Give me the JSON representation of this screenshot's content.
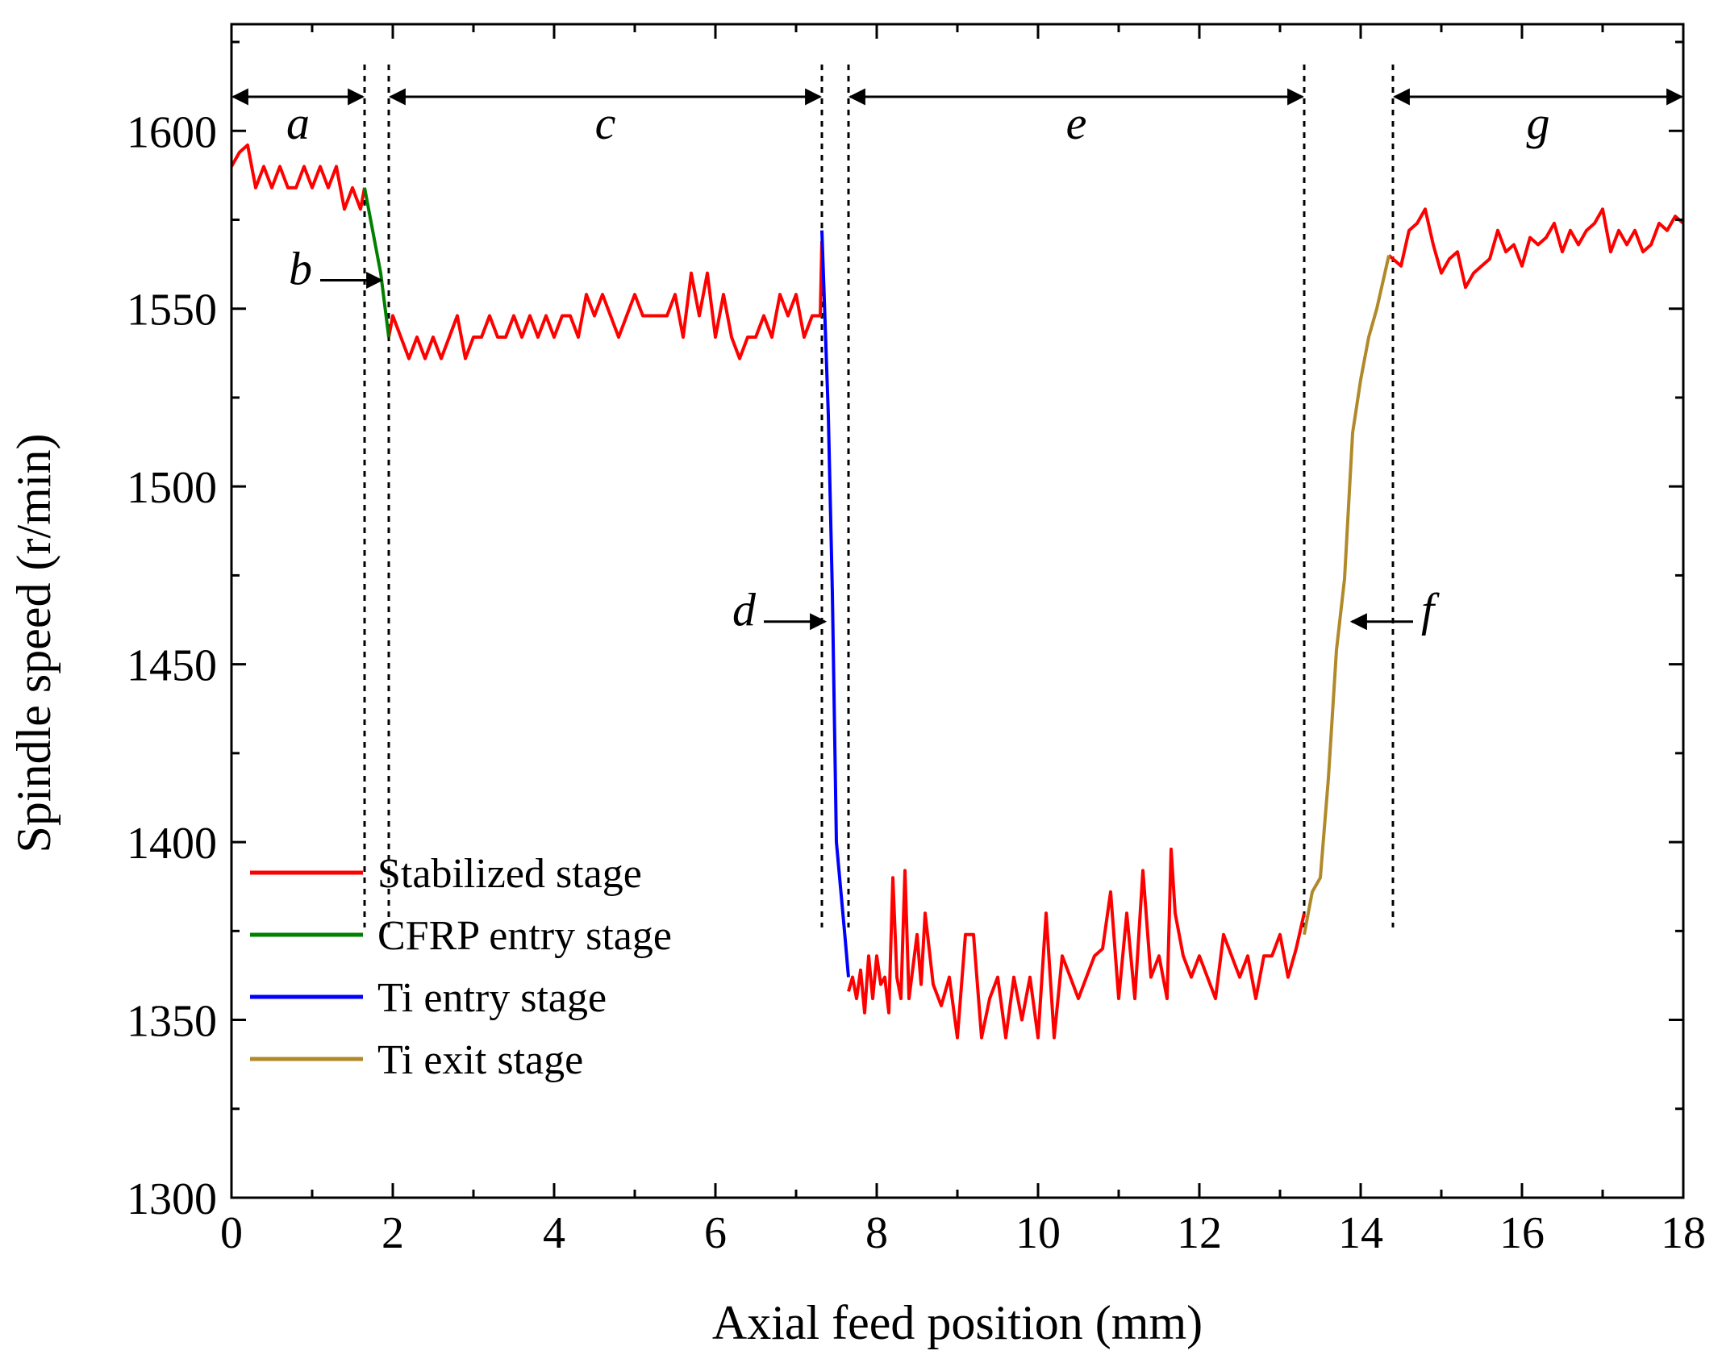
{
  "chart_data": {
    "type": "line",
    "title": "",
    "xlabel": "Axial feed position (mm)",
    "ylabel": "Spindle speed (r/min)",
    "xlim": [
      0,
      18
    ],
    "ylim": [
      1300,
      1630
    ],
    "xticks": [
      0,
      2,
      4,
      6,
      8,
      10,
      12,
      14,
      16,
      18
    ],
    "xtick_labels": [
      "0",
      "2",
      "4",
      "6",
      "8",
      "10",
      "12",
      "14",
      "16",
      "18"
    ],
    "yticks": [
      1300,
      1350,
      1400,
      1450,
      1500,
      1550,
      1600
    ],
    "ytick_labels": [
      "1300",
      "1350",
      "1400",
      "1450",
      "1500",
      "1550",
      "1600"
    ],
    "grid": false,
    "legend_position": "bottom-left",
    "series": [
      {
        "name": "Stabilized stage",
        "color": "#ff0000",
        "segments": [
          [
            [
              0,
              1590
            ],
            [
              0.1,
              1594
            ],
            [
              0.2,
              1596
            ],
            [
              0.3,
              1584
            ],
            [
              0.4,
              1590
            ],
            [
              0.5,
              1584
            ],
            [
              0.6,
              1590
            ],
            [
              0.7,
              1584
            ],
            [
              0.8,
              1584
            ],
            [
              0.9,
              1590
            ],
            [
              1.0,
              1584
            ],
            [
              1.1,
              1590
            ],
            [
              1.2,
              1584
            ],
            [
              1.3,
              1590
            ],
            [
              1.4,
              1578
            ],
            [
              1.5,
              1584
            ],
            [
              1.6,
              1578
            ],
            [
              1.65,
              1584
            ]
          ],
          [
            [
              1.95,
              1542
            ],
            [
              2.0,
              1548
            ],
            [
              2.1,
              1542
            ],
            [
              2.2,
              1536
            ],
            [
              2.3,
              1542
            ],
            [
              2.4,
              1536
            ],
            [
              2.5,
              1542
            ],
            [
              2.6,
              1536
            ],
            [
              2.7,
              1542
            ],
            [
              2.8,
              1548
            ],
            [
              2.9,
              1536
            ],
            [
              3.0,
              1542
            ],
            [
              3.1,
              1542
            ],
            [
              3.2,
              1548
            ],
            [
              3.3,
              1542
            ],
            [
              3.4,
              1542
            ],
            [
              3.5,
              1548
            ],
            [
              3.6,
              1542
            ],
            [
              3.7,
              1548
            ],
            [
              3.8,
              1542
            ],
            [
              3.9,
              1548
            ],
            [
              4.0,
              1542
            ],
            [
              4.1,
              1548
            ],
            [
              4.2,
              1548
            ],
            [
              4.3,
              1542
            ],
            [
              4.4,
              1554
            ],
            [
              4.5,
              1548
            ],
            [
              4.6,
              1554
            ],
            [
              4.7,
              1548
            ],
            [
              4.8,
              1542
            ],
            [
              4.9,
              1548
            ],
            [
              5.0,
              1554
            ],
            [
              5.1,
              1548
            ],
            [
              5.2,
              1548
            ],
            [
              5.3,
              1548
            ],
            [
              5.4,
              1548
            ],
            [
              5.5,
              1554
            ],
            [
              5.6,
              1542
            ],
            [
              5.7,
              1560
            ],
            [
              5.8,
              1548
            ],
            [
              5.9,
              1560
            ],
            [
              6.0,
              1542
            ],
            [
              6.1,
              1554
            ],
            [
              6.2,
              1542
            ],
            [
              6.3,
              1536
            ],
            [
              6.4,
              1542
            ],
            [
              6.5,
              1542
            ],
            [
              6.6,
              1548
            ],
            [
              6.7,
              1542
            ],
            [
              6.8,
              1554
            ],
            [
              6.9,
              1548
            ],
            [
              7.0,
              1554
            ],
            [
              7.1,
              1542
            ],
            [
              7.2,
              1548
            ],
            [
              7.3,
              1548
            ],
            [
              7.32,
              1569
            ]
          ],
          [
            [
              7.65,
              1358
            ],
            [
              7.7,
              1362
            ],
            [
              7.75,
              1356
            ],
            [
              7.8,
              1364
            ],
            [
              7.85,
              1352
            ],
            [
              7.9,
              1368
            ],
            [
              7.95,
              1356
            ],
            [
              8.0,
              1368
            ],
            [
              8.05,
              1360
            ],
            [
              8.1,
              1362
            ],
            [
              8.15,
              1352
            ],
            [
              8.2,
              1390
            ],
            [
              8.25,
              1362
            ],
            [
              8.3,
              1356
            ],
            [
              8.35,
              1392
            ],
            [
              8.4,
              1356
            ],
            [
              8.5,
              1374
            ],
            [
              8.55,
              1360
            ],
            [
              8.6,
              1380
            ],
            [
              8.7,
              1360
            ],
            [
              8.8,
              1354
            ],
            [
              8.9,
              1362
            ],
            [
              9.0,
              1345
            ],
            [
              9.1,
              1374
            ],
            [
              9.2,
              1374
            ],
            [
              9.3,
              1345
            ],
            [
              9.4,
              1356
            ],
            [
              9.5,
              1362
            ],
            [
              9.6,
              1345
            ],
            [
              9.7,
              1362
            ],
            [
              9.8,
              1350
            ],
            [
              9.9,
              1362
            ],
            [
              10.0,
              1345
            ],
            [
              10.1,
              1380
            ],
            [
              10.2,
              1345
            ],
            [
              10.3,
              1368
            ],
            [
              10.4,
              1362
            ],
            [
              10.5,
              1356
            ],
            [
              10.6,
              1362
            ],
            [
              10.7,
              1368
            ],
            [
              10.8,
              1370
            ],
            [
              10.9,
              1386
            ],
            [
              11.0,
              1356
            ],
            [
              11.1,
              1380
            ],
            [
              11.2,
              1356
            ],
            [
              11.3,
              1392
            ],
            [
              11.4,
              1362
            ],
            [
              11.5,
              1368
            ],
            [
              11.6,
              1356
            ],
            [
              11.65,
              1398
            ],
            [
              11.7,
              1380
            ],
            [
              11.8,
              1368
            ],
            [
              11.9,
              1362
            ],
            [
              12.0,
              1368
            ],
            [
              12.1,
              1362
            ],
            [
              12.2,
              1356
            ],
            [
              12.3,
              1374
            ],
            [
              12.4,
              1368
            ],
            [
              12.5,
              1362
            ],
            [
              12.6,
              1368
            ],
            [
              12.7,
              1356
            ],
            [
              12.8,
              1368
            ],
            [
              12.9,
              1368
            ],
            [
              13.0,
              1374
            ],
            [
              13.1,
              1362
            ],
            [
              13.2,
              1370
            ],
            [
              13.3,
              1380
            ]
          ],
          [
            [
              14.35,
              1565
            ],
            [
              14.5,
              1562
            ],
            [
              14.6,
              1572
            ],
            [
              14.7,
              1574
            ],
            [
              14.8,
              1578
            ],
            [
              14.9,
              1568
            ],
            [
              15.0,
              1560
            ],
            [
              15.1,
              1564
            ],
            [
              15.2,
              1566
            ],
            [
              15.3,
              1556
            ],
            [
              15.4,
              1560
            ],
            [
              15.5,
              1562
            ],
            [
              15.6,
              1564
            ],
            [
              15.7,
              1572
            ],
            [
              15.8,
              1566
            ],
            [
              15.9,
              1568
            ],
            [
              16.0,
              1562
            ],
            [
              16.1,
              1570
            ],
            [
              16.2,
              1568
            ],
            [
              16.3,
              1570
            ],
            [
              16.4,
              1574
            ],
            [
              16.5,
              1566
            ],
            [
              16.6,
              1572
            ],
            [
              16.7,
              1568
            ],
            [
              16.8,
              1572
            ],
            [
              16.9,
              1574
            ],
            [
              17.0,
              1578
            ],
            [
              17.1,
              1566
            ],
            [
              17.2,
              1572
            ],
            [
              17.3,
              1568
            ],
            [
              17.4,
              1572
            ],
            [
              17.5,
              1566
            ],
            [
              17.6,
              1568
            ],
            [
              17.7,
              1574
            ],
            [
              17.8,
              1572
            ],
            [
              17.9,
              1576
            ],
            [
              18.0,
              1574
            ]
          ]
        ]
      },
      {
        "name": "CFRP entry stage",
        "color": "#008000",
        "segments": [
          [
            [
              1.65,
              1584
            ],
            [
              1.75,
              1572
            ],
            [
              1.85,
              1560
            ],
            [
              1.95,
              1542
            ]
          ]
        ]
      },
      {
        "name": "Ti entry stage",
        "color": "#0000ff",
        "segments": [
          [
            [
              7.32,
              1572
            ],
            [
              7.4,
              1520
            ],
            [
              7.45,
              1470
            ],
            [
              7.5,
              1400
            ],
            [
              7.6,
              1375
            ],
            [
              7.65,
              1362
            ]
          ]
        ]
      },
      {
        "name": "Ti exit stage",
        "color": "#b08a2a",
        "segments": [
          [
            [
              13.3,
              1374
            ],
            [
              13.4,
              1386
            ],
            [
              13.5,
              1390
            ],
            [
              13.6,
              1418
            ],
            [
              13.7,
              1454
            ],
            [
              13.8,
              1474
            ],
            [
              13.9,
              1515
            ],
            [
              14.0,
              1530
            ],
            [
              14.1,
              1542
            ],
            [
              14.2,
              1550
            ],
            [
              14.3,
              1560
            ],
            [
              14.35,
              1565
            ]
          ]
        ]
      }
    ],
    "stage_boundaries": [
      1.65,
      1.95,
      7.32,
      7.65,
      13.3,
      14.4
    ],
    "annotations": [
      {
        "label": "a",
        "kind": "range",
        "from": 0,
        "to": 1.65
      },
      {
        "label": "b",
        "kind": "pointer",
        "x": 1.9,
        "y": 1558,
        "side": "left"
      },
      {
        "label": "c",
        "kind": "range",
        "from": 1.95,
        "to": 7.32
      },
      {
        "label": "d",
        "kind": "pointer",
        "x": 7.4,
        "y": 1462,
        "side": "left"
      },
      {
        "label": "e",
        "kind": "range",
        "from": 7.65,
        "to": 13.3
      },
      {
        "label": "f",
        "kind": "pointer",
        "x": 13.85,
        "y": 1462,
        "side": "right"
      },
      {
        "label": "g",
        "kind": "range",
        "from": 14.4,
        "to": 18
      }
    ],
    "legend": [
      {
        "label": "Stabilized stage",
        "color": "#ff0000"
      },
      {
        "label": "CFRP entry stage",
        "color": "#008000"
      },
      {
        "label": "Ti entry stage",
        "color": "#0000ff"
      },
      {
        "label": "Ti exit stage",
        "color": "#b08a2a"
      }
    ]
  }
}
